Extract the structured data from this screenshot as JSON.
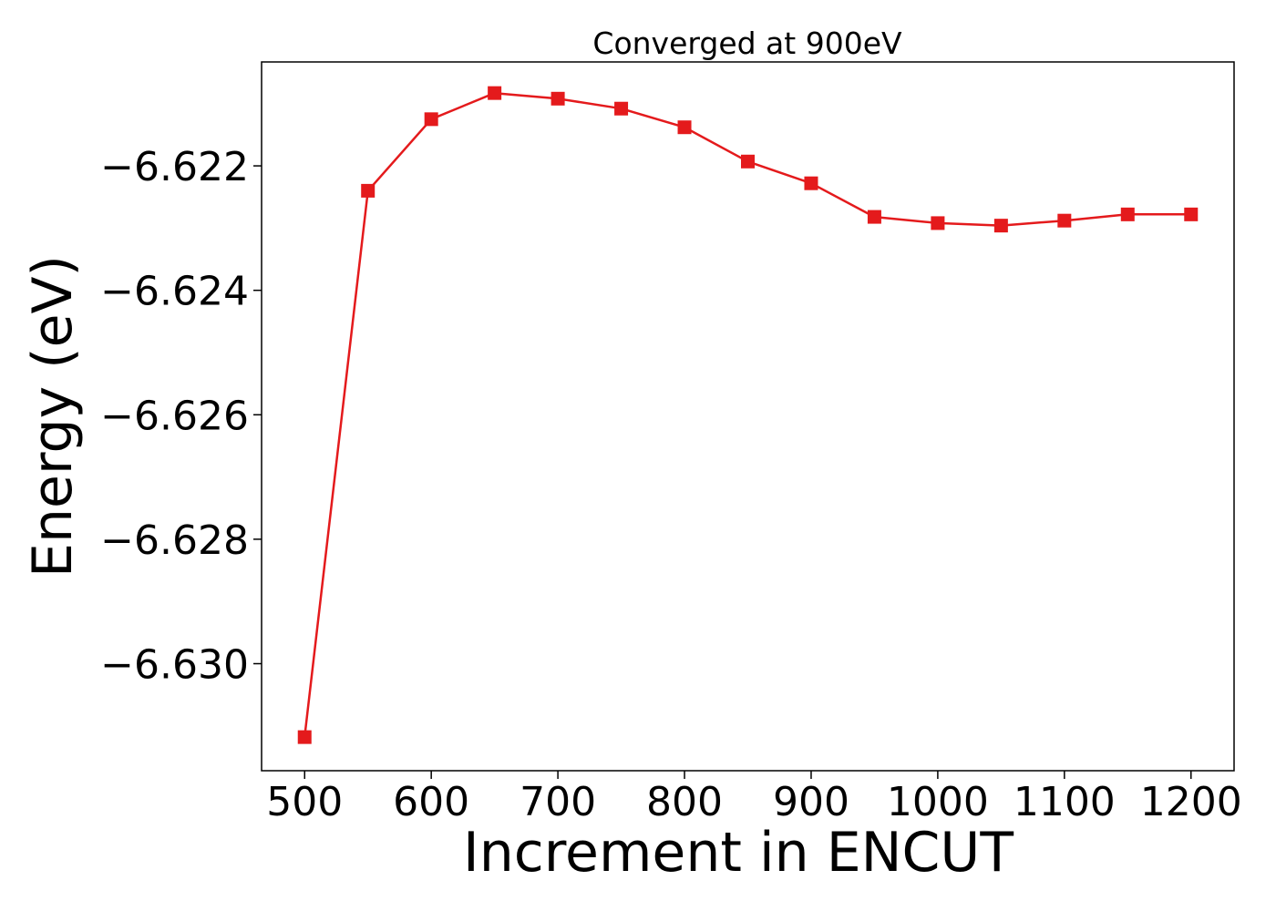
{
  "chart_data": {
    "type": "line",
    "title": "Converged at 900eV",
    "xlabel": "Increment in ENCUT",
    "ylabel": "Energy (eV)",
    "xlim": [
      466,
      1234
    ],
    "ylim": [
      -6.63172,
      -6.62033
    ],
    "xticks": [
      500,
      600,
      700,
      800,
      900,
      1000,
      1100,
      1200
    ],
    "xtick_labels": [
      "500",
      "600",
      "700",
      "800",
      "900",
      "1000",
      "1100",
      "1200"
    ],
    "yticks": [
      -6.622,
      -6.624,
      -6.626,
      -6.628,
      -6.63
    ],
    "ytick_labels": [
      "−6.622",
      "−6.624",
      "−6.626",
      "−6.628",
      "−6.630"
    ],
    "grid": false,
    "legend": "none",
    "series": [
      {
        "color": "#e41a1c",
        "marker": "square",
        "x": [
          500,
          550,
          600,
          650,
          700,
          750,
          800,
          850,
          900,
          950,
          1000,
          1050,
          1100,
          1150,
          1200
        ],
        "y": [
          -6.63118,
          -6.6224,
          -6.62125,
          -6.62083,
          -6.62092,
          -6.62108,
          -6.62138,
          -6.62193,
          -6.62228,
          -6.62282,
          -6.62292,
          -6.62296,
          -6.62288,
          -6.62278,
          -6.62278
        ]
      }
    ]
  }
}
